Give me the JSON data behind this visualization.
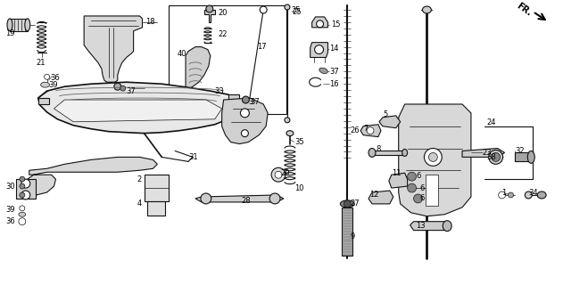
{
  "bg": "#ffffff",
  "lc": "#111111",
  "fig_w": 6.31,
  "fig_h": 3.2,
  "dpi": 100
}
